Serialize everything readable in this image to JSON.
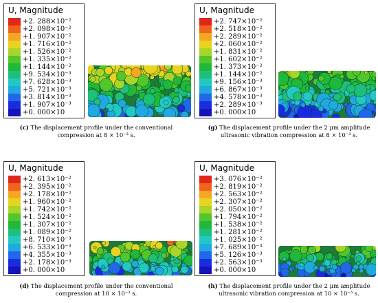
{
  "legend_title": "U, Magnitude",
  "scale_colors": [
    "#e0261b",
    "#f0631a",
    "#f5a623",
    "#e8d41f",
    "#a9d42a",
    "#52c62a",
    "#1fb83a",
    "#1dbf7a",
    "#22c9c2",
    "#20a8e0",
    "#2068e8",
    "#1a2ce0",
    "#1414b8"
  ],
  "panels": [
    {
      "id": "c",
      "legend": [
        "+2. 288×10⁻²",
        "+2. 098×10⁻²",
        "+1. 907×10⁻²",
        "+1. 716×10⁻²",
        "+1. 526×10⁻²",
        "+1. 335×10⁻²",
        "+1. 144×10⁻²",
        "+9. 534×10⁻³",
        "+7. 628×10⁻³",
        "+5. 721×10⁻³",
        "+3. 814×10⁻³",
        "+1. 907×10⁻³",
        "+0. 000×10"
      ],
      "caption_tag": "(c)",
      "caption_line1": "The displacement profile under the conventional",
      "caption_line2": "compression at 8 × 10⁻³ s."
    },
    {
      "id": "g",
      "legend": [
        "+2. 747×10⁻²",
        "+2. 518×10⁻²",
        "+2. 289×10⁻²",
        "+2. 060×10⁻²",
        "+1. 831×10⁻²",
        "+1. 602×10⁻²",
        "+1. 373×10⁻²",
        "+1. 144×10⁻²",
        "+9. 156×10⁻³",
        "+6. 867×10⁻³",
        "+4. 578×10⁻³",
        "+2. 289×10⁻³",
        "+0. 000×10"
      ],
      "caption_tag": "(g)",
      "caption_line1": "The displacement profile under the 2 μm amplitude",
      "caption_line2": "ultrasonic vibration compression at 8 × 10⁻³ s."
    },
    {
      "id": "d",
      "legend": [
        "+2. 613×10⁻²",
        "+2. 395×10⁻²",
        "+2. 178×10⁻²",
        "+1. 960×10⁻²",
        "+1. 742×10⁻²",
        "+1. 524×10⁻²",
        "+1. 307×10⁻²",
        "+1. 089×10⁻²",
        "+8. 710×10⁻³",
        "+6. 533×10⁻³",
        "+4. 355×10⁻³",
        "+2. 178×10⁻³",
        "+0. 000×10"
      ],
      "caption_tag": "(d)",
      "caption_line1": "The displacement profile under the conventional",
      "caption_line2": "compression at 10 × 10⁻³ s."
    },
    {
      "id": "h",
      "legend": [
        "+3. 076×10⁻²",
        "+2. 819×10⁻²",
        "+2. 563×10⁻²",
        "+2. 307×10⁻²",
        "+2. 050×10⁻²",
        "+1. 794×10⁻²",
        "+1. 538×10⁻²",
        "+1. 281×10⁻²",
        "+1. 025×10⁻²",
        "+7. 689×10⁻³",
        "+5. 126×10⁻³",
        "+2. 563×10⁻³",
        "+0. 000×10"
      ],
      "caption_tag": "(h)",
      "caption_line1": "The displacement profile under the 2 μm amplitude",
      "caption_line2": "ultrasonic vibration compression at 10 × 10⁻³ s."
    }
  ]
}
